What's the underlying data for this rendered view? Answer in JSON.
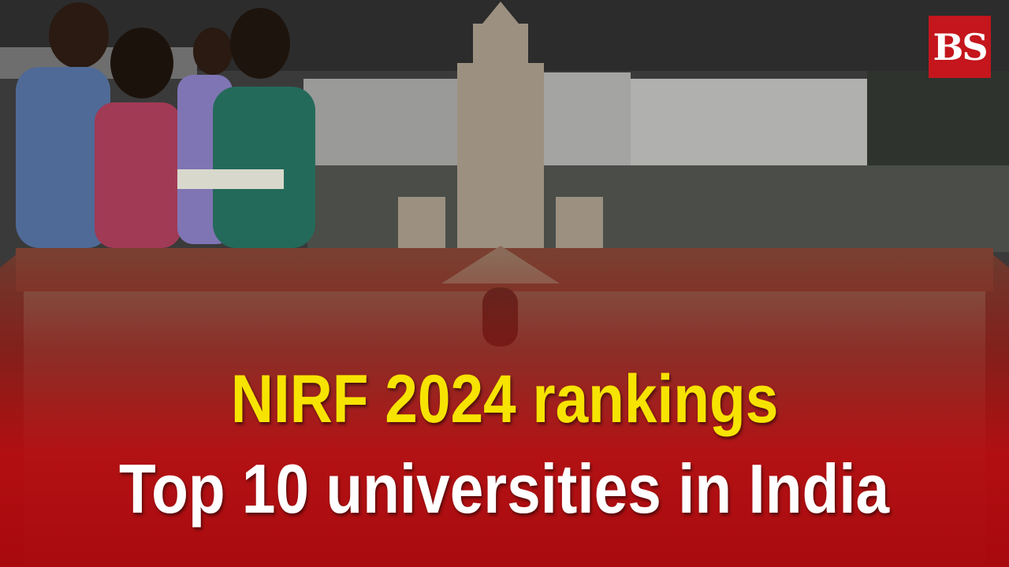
{
  "logo": {
    "text": "BS",
    "color": "#c4161c"
  },
  "headline": {
    "line1": "NIRF 2024 rankings",
    "line2": "Top 10 universities in India",
    "line1_color": "#f7e300",
    "line2_color": "#ffffff"
  },
  "background": {
    "accent": "#b80a0e"
  }
}
